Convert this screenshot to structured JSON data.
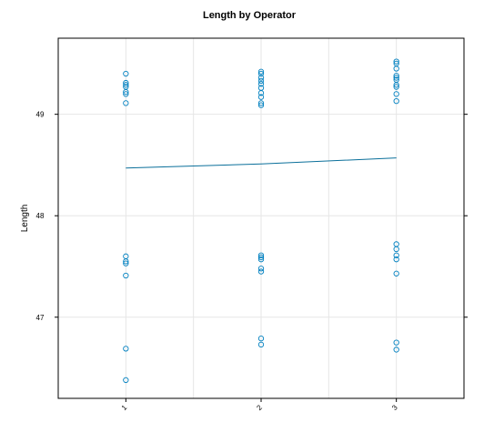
{
  "chart_data": {
    "type": "scatter",
    "title": "Length by Operator",
    "xlabel": "",
    "ylabel": "Length",
    "x_categories": [
      "1",
      "2",
      "3"
    ],
    "y_ticks": [
      47,
      48,
      49
    ],
    "xlim": [
      0.5,
      3.5
    ],
    "ylim": [
      46.2,
      49.75
    ],
    "grid": true,
    "points": [
      {
        "x": 1,
        "y": 49.4
      },
      {
        "x": 1,
        "y": 49.31
      },
      {
        "x": 1,
        "y": 49.29
      },
      {
        "x": 1,
        "y": 49.27
      },
      {
        "x": 1,
        "y": 49.22
      },
      {
        "x": 1,
        "y": 49.2
      },
      {
        "x": 1,
        "y": 49.11
      },
      {
        "x": 1,
        "y": 47.6
      },
      {
        "x": 1,
        "y": 47.55
      },
      {
        "x": 1,
        "y": 47.53
      },
      {
        "x": 1,
        "y": 47.41
      },
      {
        "x": 1,
        "y": 46.69
      },
      {
        "x": 1,
        "y": 46.38
      },
      {
        "x": 2,
        "y": 49.42
      },
      {
        "x": 2,
        "y": 49.4
      },
      {
        "x": 2,
        "y": 49.36
      },
      {
        "x": 2,
        "y": 49.33
      },
      {
        "x": 2,
        "y": 49.3
      },
      {
        "x": 2,
        "y": 49.26
      },
      {
        "x": 2,
        "y": 49.21
      },
      {
        "x": 2,
        "y": 49.17
      },
      {
        "x": 2,
        "y": 49.11
      },
      {
        "x": 2,
        "y": 49.09
      },
      {
        "x": 2,
        "y": 47.61
      },
      {
        "x": 2,
        "y": 47.59
      },
      {
        "x": 2,
        "y": 47.57
      },
      {
        "x": 2,
        "y": 47.48
      },
      {
        "x": 2,
        "y": 47.45
      },
      {
        "x": 2,
        "y": 46.79
      },
      {
        "x": 2,
        "y": 46.73
      },
      {
        "x": 3,
        "y": 49.52
      },
      {
        "x": 3,
        "y": 49.5
      },
      {
        "x": 3,
        "y": 49.45
      },
      {
        "x": 3,
        "y": 49.38
      },
      {
        "x": 3,
        "y": 49.36
      },
      {
        "x": 3,
        "y": 49.34
      },
      {
        "x": 3,
        "y": 49.29
      },
      {
        "x": 3,
        "y": 49.27
      },
      {
        "x": 3,
        "y": 49.2
      },
      {
        "x": 3,
        "y": 49.13
      },
      {
        "x": 3,
        "y": 47.72
      },
      {
        "x": 3,
        "y": 47.67
      },
      {
        "x": 3,
        "y": 47.61
      },
      {
        "x": 3,
        "y": 47.57
      },
      {
        "x": 3,
        "y": 47.43
      },
      {
        "x": 3,
        "y": 46.75
      },
      {
        "x": 3,
        "y": 46.68
      }
    ],
    "mean_line": {
      "x": [
        1,
        2,
        3
      ],
      "y": [
        48.47,
        48.51,
        48.57
      ]
    },
    "colors": {
      "points": "#0080c0",
      "line": "#0a6f9a",
      "grid": "#e6e6e6"
    }
  }
}
